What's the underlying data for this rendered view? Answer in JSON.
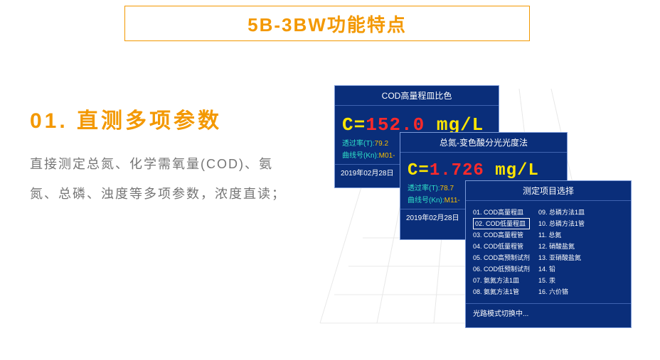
{
  "title": "5B-3BW功能特点",
  "section": {
    "num": "01. 直测多项参数"
  },
  "description": "直接测定总氮、化学需氧量(COD)、氨氮、总磷、浊度等多项参数，浓度直读；",
  "panel1": {
    "header": "COD高量程皿比色",
    "eq": "C=",
    "value": "152.0",
    "unit": " mg/L",
    "trans_label": "透过率(T):",
    "trans_value": "79.2",
    "curve_label": "曲线号(Kn):",
    "curve_value": "M01-",
    "date": "2019年02月28日"
  },
  "panel2": {
    "header": "总氮-变色酸分光光度法",
    "eq": "C=",
    "value": "1.726",
    "unit": " mg/L",
    "trans_label": "透过率(T):",
    "trans_value": "78.7",
    "curve_label": "曲线号(Kn):",
    "curve_value": "M11-",
    "date": "2019年02月28日"
  },
  "panel3": {
    "header": "测定项目选择",
    "col1": [
      "01. COD高量程皿",
      "02. COD低量程皿",
      "03. COD高量程管",
      "04. COD低量程管",
      "05. COD高预制试剂",
      "06. COD低预制试剂",
      "07. 氨氮方法1皿",
      "08. 氨氮方法1管"
    ],
    "col2": [
      "09. 总磷方法1皿",
      "10. 总磷方法1管",
      "11. 总氮",
      "12. 硝酸盐氮",
      "13. 亚硝酸盐氮",
      "14. 铅",
      "15. 汞",
      "16. 六价铬"
    ],
    "selected_index": 1,
    "footer": "光路模式切换中..."
  },
  "colors": {
    "accent": "#f39800",
    "panel_bg": "#0a2e7a",
    "body_text": "#757575",
    "c_eq": "#ffe600",
    "c_num": "#ff2a2a",
    "meta_lbl": "#2fe0c8",
    "meta_val": "#f7be00"
  }
}
